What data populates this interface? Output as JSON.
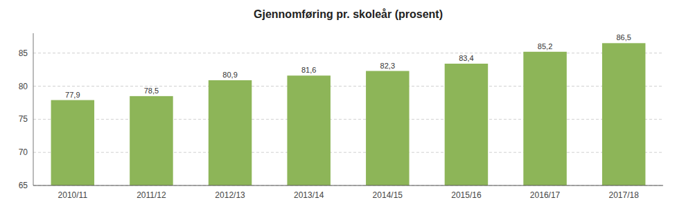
{
  "chart_data": {
    "type": "bar",
    "title": "Gjennomføring pr. skoleår (prosent)",
    "categories": [
      "2010/11",
      "2011/12",
      "2012/13",
      "2013/14",
      "2014/15",
      "2015/16",
      "2016/17",
      "2017/18"
    ],
    "values": [
      77.9,
      78.5,
      80.9,
      81.6,
      82.3,
      83.4,
      85.2,
      86.5
    ],
    "value_labels": [
      "77,9",
      "78,5",
      "80,9",
      "81,6",
      "82,3",
      "83,4",
      "85,2",
      "86,5"
    ],
    "color": "#8DB558",
    "ylim": [
      65,
      88
    ],
    "yticks": [
      65,
      70,
      75,
      80,
      85
    ],
    "grid": true,
    "data_labels": true
  }
}
